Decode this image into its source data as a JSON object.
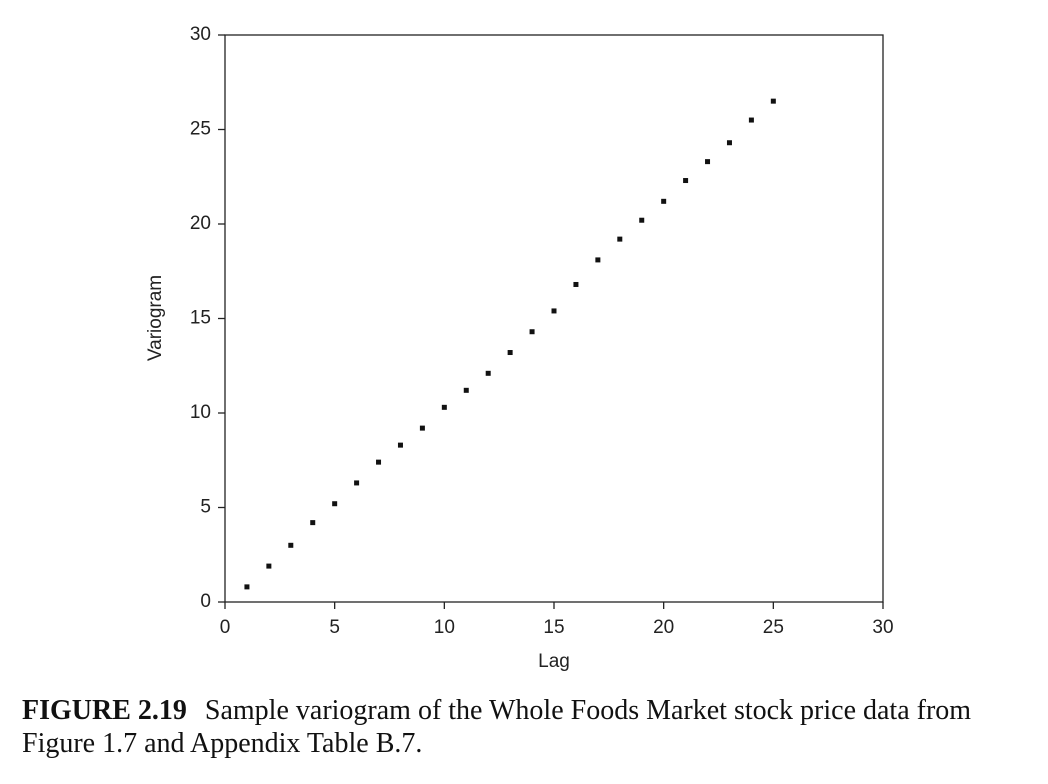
{
  "chart_data": {
    "type": "scatter",
    "x_label": "Lag",
    "y_label": "Variogram",
    "figure_label": "FIGURE 2.19",
    "caption": "Sample variogram of the Whole Foods Market stock price data from Figure 1.7 and Appendix Table B.7.",
    "color": "#111111",
    "x": [
      1,
      2,
      3,
      4,
      5,
      6,
      7,
      8,
      9,
      10,
      11,
      12,
      13,
      14,
      15,
      16,
      17,
      18,
      19,
      20,
      21,
      22,
      23,
      24,
      25
    ],
    "values": [
      0.8,
      1.9,
      3.0,
      4.2,
      5.2,
      6.3,
      7.4,
      8.3,
      9.2,
      10.3,
      11.2,
      12.1,
      13.2,
      14.3,
      15.4,
      16.8,
      18.1,
      19.2,
      20.2,
      21.2,
      22.3,
      23.3,
      24.3,
      25.5,
      26.5
    ],
    "xlim": [
      0,
      30
    ],
    "xticks": [
      0,
      5,
      10,
      15,
      20,
      25,
      30
    ],
    "ylim": [
      0,
      30
    ],
    "yticks": [
      0,
      5,
      10,
      15,
      20,
      25,
      30
    ],
    "grid": false
  }
}
